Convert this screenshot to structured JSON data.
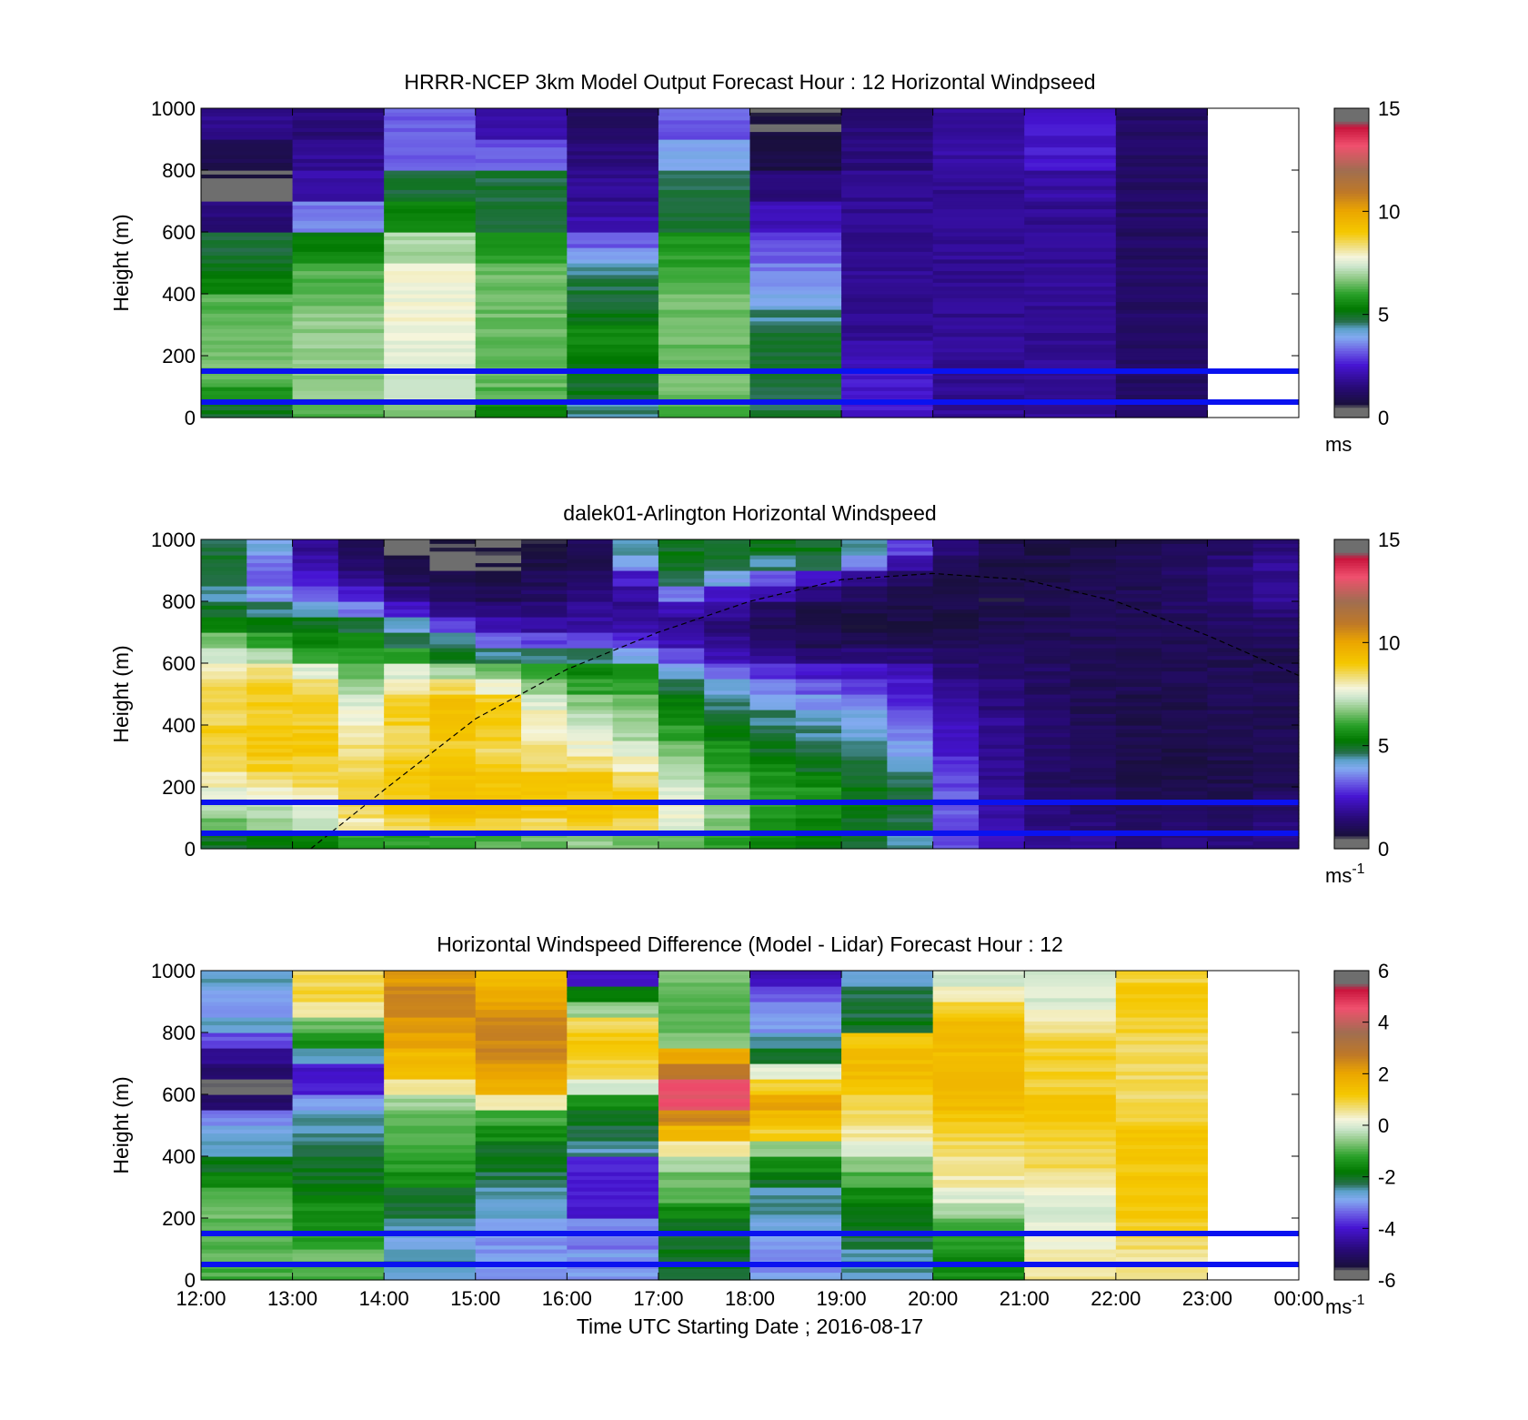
{
  "figure": {
    "xlabel": "Time UTC  Starting Date ; 2016-08-17",
    "x_ticks": [
      "12:00",
      "13:00",
      "14:00",
      "15:00",
      "16:00",
      "17:00",
      "18:00",
      "19:00",
      "20:00",
      "21:00",
      "22:00",
      "23:00",
      "00:00"
    ],
    "y_ticks": [
      "0",
      "200",
      "400",
      "600",
      "800",
      "1000"
    ],
    "ylabel": "Height (m)",
    "reference_line_color": "#0a12f0"
  },
  "chart_data": [
    {
      "type": "heatmap",
      "title": "HRRR-NCEP 3km Model Output   Forecast Hour : 12 Horizontal Windpseed",
      "ylabel": "Height (m)",
      "xlim": [
        "12:00",
        "00:00"
      ],
      "ylim": [
        0,
        1000
      ],
      "colorbar": {
        "range": [
          0,
          15
        ],
        "ticks": [
          "0",
          "5",
          "10",
          "15"
        ],
        "unit_base": "ms",
        "unit_sup": ""
      },
      "reference_lines_m": [
        50,
        150
      ],
      "x_hours": [
        "12:00",
        "13:00",
        "14:00",
        "15:00",
        "16:00",
        "17:00",
        "18:00",
        "19:00",
        "20:00",
        "21:00",
        "22:00"
      ],
      "height_levels_m": [
        25,
        75,
        125,
        175,
        225,
        275,
        325,
        375,
        425,
        475,
        525,
        575,
        625,
        675,
        725,
        775,
        825,
        875,
        925,
        975
      ],
      "values_ms": [
        [
          5.0,
          6.3,
          6.8,
          5.5,
          4.5,
          6.3,
          4.8,
          2.5,
          1.8,
          1.8,
          1.2
        ],
        [
          5.8,
          6.8,
          7.3,
          6.3,
          5.0,
          6.5,
          4.8,
          2.5,
          1.8,
          1.8,
          1.2
        ],
        [
          6.3,
          6.8,
          7.3,
          6.5,
          5.0,
          6.5,
          4.8,
          2.5,
          1.8,
          1.8,
          1.2
        ],
        [
          6.5,
          6.8,
          7.5,
          6.5,
          5.3,
          6.5,
          4.8,
          2.2,
          1.8,
          1.8,
          1.2
        ],
        [
          6.5,
          6.8,
          7.5,
          6.5,
          5.5,
          6.5,
          4.8,
          2.0,
          1.8,
          1.8,
          1.2
        ],
        [
          6.5,
          6.8,
          7.8,
          6.5,
          5.5,
          6.5,
          4.8,
          1.8,
          1.8,
          1.8,
          1.2
        ],
        [
          6.5,
          6.8,
          7.8,
          6.5,
          5.0,
          6.5,
          4.5,
          1.8,
          1.8,
          1.8,
          1.2
        ],
        [
          6.3,
          6.5,
          7.8,
          6.5,
          4.8,
          6.5,
          4.0,
          1.8,
          1.8,
          1.8,
          1.2
        ],
        [
          5.5,
          6.3,
          7.8,
          6.5,
          4.8,
          6.3,
          3.8,
          1.8,
          1.8,
          1.8,
          1.2
        ],
        [
          5.0,
          6.3,
          7.8,
          6.5,
          4.5,
          6.0,
          3.5,
          1.8,
          1.8,
          1.8,
          1.2
        ],
        [
          4.8,
          5.5,
          7.0,
          6.0,
          3.8,
          6.0,
          3.2,
          1.8,
          1.8,
          1.8,
          1.2
        ],
        [
          4.8,
          5.3,
          7.0,
          5.8,
          3.2,
          5.8,
          3.0,
          1.8,
          1.8,
          1.8,
          1.2
        ],
        [
          1.5,
          3.5,
          5.5,
          4.8,
          2.2,
          4.8,
          2.2,
          1.8,
          1.8,
          1.8,
          1.2
        ],
        [
          1.5,
          3.5,
          5.5,
          4.8,
          2.0,
          4.8,
          2.2,
          1.8,
          1.8,
          1.8,
          1.2
        ],
        [
          0.5,
          2.0,
          4.8,
          4.8,
          1.8,
          4.8,
          1.5,
          1.8,
          1.8,
          2.0,
          1.2
        ],
        [
          0.5,
          2.0,
          4.8,
          4.8,
          1.8,
          4.8,
          1.5,
          1.8,
          1.8,
          2.0,
          1.2
        ],
        [
          1.0,
          1.8,
          3.2,
          3.2,
          1.5,
          3.8,
          0.8,
          1.5,
          2.0,
          2.5,
          1.2
        ],
        [
          1.0,
          1.8,
          3.2,
          3.2,
          1.5,
          3.8,
          0.8,
          1.5,
          2.0,
          2.5,
          1.2
        ],
        [
          1.8,
          1.5,
          3.2,
          2.0,
          1.2,
          3.2,
          0.6,
          1.5,
          2.0,
          2.5,
          1.2
        ],
        [
          1.8,
          1.5,
          3.2,
          2.0,
          1.2,
          3.2,
          0.6,
          1.5,
          2.0,
          2.5,
          1.2
        ]
      ]
    },
    {
      "type": "heatmap",
      "title": "dalek01-Arlington  Horizontal Windspeed",
      "ylabel": "Height (m)",
      "xlim": [
        "12:00",
        "00:00"
      ],
      "ylim": [
        0,
        1000
      ],
      "colorbar": {
        "range": [
          0,
          15
        ],
        "ticks": [
          "0",
          "5",
          "10",
          "15"
        ],
        "unit_base": "ms",
        "unit_sup": "-1"
      },
      "reference_lines_m": [
        50,
        150
      ],
      "profile_times": [
        "12:00",
        "12:30",
        "13:00",
        "13:30",
        "14:00",
        "14:30",
        "15:00",
        "15:30",
        "16:00",
        "16:30",
        "17:00",
        "17:30",
        "18:00",
        "18:30",
        "19:00",
        "19:30",
        "20:00",
        "20:30",
        "21:00",
        "21:30",
        "22:00",
        "22:30",
        "23:00",
        "23:30"
      ],
      "height_levels_m": [
        25,
        75,
        125,
        175,
        225,
        275,
        325,
        375,
        425,
        475,
        525,
        575,
        625,
        675,
        725,
        775,
        825,
        875,
        925,
        975
      ],
      "values_ms": [
        [
          5.0,
          5.2,
          5.5,
          6.0,
          6.0,
          6.2,
          6.3,
          6.5,
          6.8,
          6.5,
          6.3,
          6.0,
          5.5,
          5.2,
          4.8,
          4.5,
          3.0,
          2.2,
          1.8,
          1.8,
          1.6,
          1.6,
          1.5,
          1.5
        ],
        [
          6.5,
          6.8,
          7.2,
          8.0,
          8.5,
          8.8,
          8.8,
          8.5,
          8.8,
          8.5,
          7.5,
          6.5,
          5.8,
          5.5,
          5.0,
          4.8,
          3.0,
          2.0,
          1.6,
          1.5,
          1.3,
          1.3,
          1.3,
          1.5
        ],
        [
          7.0,
          7.2,
          7.5,
          8.5,
          9.0,
          9.2,
          9.2,
          9.0,
          9.2,
          9.0,
          7.8,
          6.8,
          6.0,
          5.8,
          5.2,
          5.0,
          3.2,
          2.0,
          1.5,
          1.3,
          1.2,
          1.2,
          1.2,
          1.3
        ],
        [
          7.5,
          7.8,
          8.0,
          8.8,
          9.0,
          9.2,
          9.0,
          9.0,
          9.0,
          8.8,
          7.5,
          6.5,
          6.0,
          5.8,
          5.2,
          4.8,
          3.2,
          1.8,
          1.3,
          1.2,
          1.0,
          1.0,
          1.0,
          1.2
        ],
        [
          8.0,
          8.3,
          8.5,
          8.8,
          9.0,
          9.2,
          9.0,
          9.0,
          9.0,
          8.5,
          7.2,
          6.3,
          5.8,
          5.5,
          5.0,
          4.5,
          3.0,
          1.8,
          1.2,
          1.0,
          0.9,
          0.8,
          0.9,
          1.0
        ],
        [
          8.5,
          8.8,
          8.8,
          8.5,
          8.8,
          9.0,
          8.8,
          8.5,
          8.3,
          8.0,
          7.0,
          6.0,
          5.5,
          5.0,
          4.8,
          4.2,
          2.8,
          1.8,
          1.2,
          1.0,
          0.8,
          0.8,
          0.9,
          1.0
        ],
        [
          8.8,
          9.0,
          9.0,
          8.3,
          8.5,
          8.8,
          8.5,
          8.3,
          7.8,
          7.5,
          6.5,
          5.8,
          5.0,
          4.8,
          4.5,
          3.8,
          2.5,
          1.8,
          1.3,
          1.0,
          0.8,
          0.8,
          0.9,
          1.0
        ],
        [
          8.8,
          9.0,
          9.0,
          8.0,
          8.5,
          9.0,
          8.8,
          8.0,
          7.5,
          7.0,
          6.0,
          5.2,
          4.8,
          4.5,
          4.2,
          3.5,
          2.3,
          1.8,
          1.3,
          1.0,
          0.9,
          0.9,
          0.9,
          1.0
        ],
        [
          8.5,
          8.8,
          8.8,
          7.8,
          8.8,
          9.2,
          9.0,
          8.0,
          7.2,
          6.8,
          5.5,
          4.8,
          4.5,
          4.3,
          4.0,
          3.2,
          2.2,
          1.8,
          1.3,
          1.0,
          0.9,
          0.9,
          1.0,
          1.0
        ],
        [
          8.5,
          8.8,
          8.8,
          7.5,
          8.8,
          9.2,
          8.8,
          7.5,
          6.8,
          6.5,
          5.2,
          4.5,
          4.0,
          3.8,
          3.5,
          2.8,
          2.0,
          1.5,
          1.2,
          1.0,
          0.9,
          0.9,
          1.0,
          1.0
        ],
        [
          8.5,
          8.8,
          8.5,
          7.0,
          8.0,
          8.5,
          7.8,
          6.8,
          6.0,
          6.0,
          4.8,
          4.0,
          3.5,
          3.2,
          3.0,
          2.5,
          1.8,
          1.5,
          1.2,
          1.0,
          1.0,
          1.0,
          1.0,
          1.0
        ],
        [
          8.0,
          8.3,
          7.5,
          6.5,
          7.5,
          7.0,
          6.5,
          6.2,
          5.5,
          5.5,
          4.0,
          3.2,
          2.8,
          2.5,
          2.5,
          2.2,
          1.5,
          1.3,
          1.2,
          1.0,
          1.0,
          1.0,
          1.0,
          1.0
        ],
        [
          7.5,
          7.0,
          6.0,
          6.0,
          6.0,
          5.0,
          4.5,
          4.5,
          4.5,
          4.0,
          3.0,
          2.2,
          1.8,
          1.5,
          1.5,
          1.5,
          1.3,
          1.2,
          1.1,
          1.0,
          1.0,
          1.0,
          1.0,
          1.0
        ],
        [
          6.5,
          6.0,
          5.5,
          5.5,
          4.8,
          4.5,
          3.2,
          3.0,
          3.0,
          2.8,
          2.2,
          1.8,
          1.3,
          1.0,
          1.0,
          1.0,
          1.0,
          1.0,
          1.0,
          1.0,
          1.0,
          1.0,
          1.1,
          1.2
        ],
        [
          5.5,
          5.2,
          5.0,
          4.8,
          4.2,
          3.0,
          2.2,
          2.0,
          2.0,
          2.0,
          1.8,
          1.5,
          1.0,
          0.8,
          0.8,
          0.8,
          0.8,
          0.9,
          1.0,
          1.0,
          1.0,
          1.1,
          1.2,
          1.3
        ],
        [
          5.0,
          4.5,
          4.2,
          3.5,
          2.5,
          1.8,
          1.5,
          1.5,
          1.8,
          1.8,
          2.2,
          1.8,
          1.2,
          0.8,
          0.8,
          0.8,
          0.8,
          0.8,
          0.9,
          1.0,
          1.0,
          1.2,
          1.3,
          1.5
        ],
        [
          4.5,
          3.8,
          3.2,
          2.5,
          1.5,
          1.0,
          1.0,
          1.2,
          1.5,
          2.0,
          3.5,
          2.5,
          2.0,
          1.5,
          1.2,
          1.0,
          0.8,
          0.8,
          1.0,
          1.0,
          1.0,
          1.2,
          1.5,
          1.8
        ],
        [
          4.8,
          3.2,
          2.5,
          1.8,
          1.0,
          0.8,
          0.8,
          1.0,
          1.2,
          2.5,
          4.5,
          4.0,
          3.2,
          2.5,
          1.8,
          1.2,
          0.9,
          0.8,
          0.9,
          1.0,
          1.0,
          1.2,
          1.5,
          1.8
        ],
        [
          5.0,
          3.5,
          2.0,
          1.2,
          0.8,
          0.5,
          0.5,
          0.8,
          1.0,
          3.8,
          5.0,
          4.8,
          4.5,
          4.5,
          3.5,
          2.0,
          1.0,
          0.8,
          0.8,
          0.9,
          1.0,
          1.2,
          1.5,
          1.8
        ],
        [
          4.8,
          4.0,
          1.8,
          1.0,
          0.5,
          0.4,
          0.5,
          0.8,
          1.2,
          4.5,
          5.0,
          5.0,
          5.0,
          5.0,
          4.5,
          3.0,
          1.5,
          0.9,
          0.8,
          0.8,
          0.9,
          1.0,
          1.2,
          1.5
        ]
      ],
      "boundary_layer_curve": {
        "x_hours": [
          13.2,
          14.0,
          15.0,
          16.0,
          17.0,
          18.0,
          19.0,
          20.0,
          21.0,
          22.0,
          23.0,
          24.0
        ],
        "height_m": [
          0,
          190,
          420,
          580,
          700,
          800,
          870,
          890,
          870,
          800,
          690,
          560
        ]
      }
    },
    {
      "type": "heatmap",
      "title": "Horizontal Windspeed Difference (Model - Lidar) Forecast Hour : 12",
      "ylabel": "Height (m)",
      "xlabel": "Time UTC  Starting Date ; 2016-08-17",
      "xlim": [
        "12:00",
        "00:00"
      ],
      "ylim": [
        0,
        1000
      ],
      "colorbar": {
        "range": [
          -6,
          6
        ],
        "ticks": [
          "-6",
          "-4",
          "-2",
          "0",
          "2",
          "4",
          "6"
        ],
        "unit_base": "ms",
        "unit_sup": "-1"
      },
      "reference_lines_m": [
        50,
        150
      ],
      "x_hours": [
        "12:00",
        "13:00",
        "14:00",
        "15:00",
        "16:00",
        "17:00",
        "18:00",
        "19:00",
        "20:00",
        "21:00",
        "22:00"
      ],
      "height_levels_m": [
        25,
        75,
        125,
        175,
        225,
        275,
        325,
        375,
        425,
        475,
        525,
        575,
        625,
        675,
        725,
        775,
        825,
        875,
        925,
        975
      ],
      "values_ms": [
        [
          -1.0,
          -1.0,
          -2.5,
          -3.0,
          -3.0,
          -2.0,
          -3.0,
          -2.5,
          -1.5,
          0.5,
          0.5
        ],
        [
          -0.8,
          -0.8,
          -2.5,
          -3.0,
          -3.0,
          -2.0,
          -3.0,
          -2.5,
          -1.5,
          0.5,
          0.5
        ],
        [
          -1.0,
          -1.2,
          -2.8,
          -3.0,
          -3.2,
          -2.2,
          -3.0,
          -2.2,
          -1.2,
          0.2,
          0.8
        ],
        [
          -1.0,
          -1.5,
          -2.5,
          -2.8,
          -3.0,
          -2.0,
          -2.8,
          -2.0,
          -1.0,
          0.0,
          1.0
        ],
        [
          -0.8,
          -1.5,
          -2.2,
          -2.5,
          -4.0,
          -1.5,
          -2.5,
          -2.0,
          -0.5,
          0.0,
          1.2
        ],
        [
          -1.0,
          -1.8,
          -2.0,
          -2.5,
          -4.0,
          -1.0,
          -2.5,
          -1.5,
          0.0,
          0.2,
          1.2
        ],
        [
          -1.5,
          -2.0,
          -1.5,
          -2.2,
          -4.0,
          -0.8,
          -2.0,
          -1.0,
          0.5,
          0.5,
          1.2
        ],
        [
          -2.0,
          -2.0,
          -1.2,
          -2.0,
          -3.8,
          -0.5,
          -1.5,
          -0.5,
          0.5,
          0.8,
          1.2
        ],
        [
          -2.5,
          -2.2,
          -1.0,
          -2.0,
          -2.5,
          0.5,
          -0.5,
          0.0,
          0.8,
          0.8,
          1.2
        ],
        [
          -2.8,
          -2.5,
          -1.0,
          -1.5,
          -2.2,
          1.5,
          1.0,
          0.5,
          1.0,
          1.0,
          1.2
        ],
        [
          -3.2,
          -2.5,
          -0.8,
          -1.0,
          -2.0,
          2.5,
          1.5,
          0.8,
          1.2,
          1.2,
          1.0
        ],
        [
          -5.0,
          -3.0,
          -0.5,
          0.5,
          -1.5,
          4.5,
          2.0,
          1.0,
          1.5,
          1.2,
          0.8
        ],
        [
          -5.5,
          -4.0,
          0.5,
          1.8,
          0.0,
          4.5,
          1.0,
          1.2,
          1.5,
          1.0,
          0.8
        ],
        [
          -5.0,
          -4.0,
          1.5,
          2.0,
          1.0,
          2.8,
          0.0,
          1.5,
          1.5,
          1.0,
          0.8
        ],
        [
          -4.5,
          -2.5,
          1.5,
          2.5,
          1.0,
          2.0,
          -2.0,
          1.5,
          1.5,
          1.0,
          0.8
        ],
        [
          -3.5,
          -1.5,
          2.0,
          2.5,
          1.2,
          -0.5,
          -2.5,
          1.2,
          1.5,
          1.0,
          0.8
        ],
        [
          -2.5,
          -0.8,
          2.2,
          2.5,
          0.8,
          -1.0,
          -3.0,
          -2.0,
          1.5,
          0.5,
          1.0
        ],
        [
          -3.0,
          0.5,
          2.5,
          2.2,
          -0.5,
          -1.0,
          -3.0,
          -2.2,
          1.0,
          0.2,
          1.0
        ],
        [
          -2.8,
          1.0,
          2.5,
          1.8,
          -1.8,
          -0.8,
          -3.5,
          -2.2,
          0.5,
          0.0,
          1.2
        ],
        [
          -2.5,
          0.8,
          2.2,
          1.5,
          -4.0,
          -0.8,
          -4.2,
          -2.5,
          0.0,
          0.0,
          1.0
        ]
      ]
    }
  ]
}
